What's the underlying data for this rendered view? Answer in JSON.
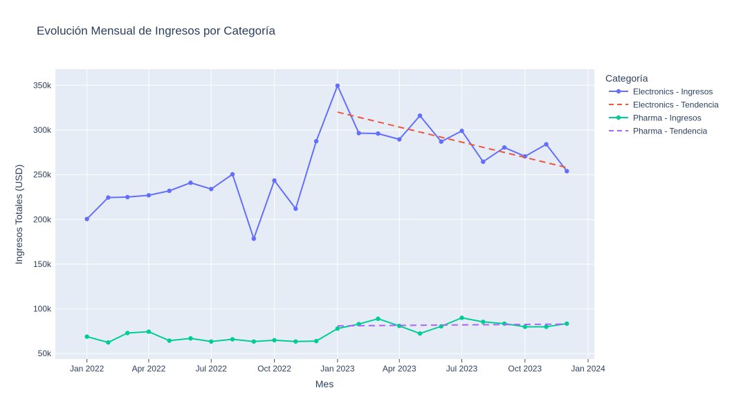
{
  "chart_data": {
    "type": "line",
    "title": "Evolución Mensual de Ingresos por Categoría",
    "xlabel": "Mes",
    "ylabel": "Ingresos Totales (USD)",
    "legend_title": "Categoría",
    "legend_position": "right",
    "grid": true,
    "x_tick_labels": [
      "Jan 2022",
      "Apr 2022",
      "Jul 2022",
      "Oct 2022",
      "Jan 2023",
      "Apr 2023",
      "Jul 2023",
      "Oct 2023",
      "Jan 2024"
    ],
    "y_ticks": [
      50000,
      100000,
      150000,
      200000,
      250000,
      300000,
      350000
    ],
    "y_tick_labels": [
      "50k",
      "100k",
      "150k",
      "200k",
      "250k",
      "300k",
      "350k"
    ],
    "ylim": [
      44000,
      368000
    ],
    "xlim": [
      "2021-11-16",
      "2024-01-10"
    ],
    "x": [
      "2022-01-01",
      "2022-02-01",
      "2022-03-01",
      "2022-04-01",
      "2022-05-01",
      "2022-06-01",
      "2022-07-01",
      "2022-08-01",
      "2022-09-01",
      "2022-10-01",
      "2022-11-01",
      "2022-12-01",
      "2023-01-01",
      "2023-02-01",
      "2023-03-01",
      "2023-04-01",
      "2023-05-01",
      "2023-06-01",
      "2023-07-01",
      "2023-08-01",
      "2023-09-01",
      "2023-10-01",
      "2023-11-01",
      "2023-12-01"
    ],
    "series": [
      {
        "name": "Electronics - Ingresos",
        "color": "#636efa",
        "mode": "lines+markers",
        "dash": "solid",
        "values": [
          200500,
          224500,
          225000,
          227000,
          232000,
          241000,
          234000,
          250500,
          178500,
          243500,
          212000,
          287500,
          349500,
          296500,
          296000,
          289500,
          316000,
          287000,
          299000,
          264500,
          280500,
          270500,
          284000,
          254000
        ]
      },
      {
        "name": "Electronics - Tendencia",
        "color": "#ef553b",
        "mode": "lines",
        "dash": "dash",
        "x": [
          "2023-01-01",
          "2023-12-01"
        ],
        "values": [
          320000,
          258000
        ]
      },
      {
        "name": "Pharma - Ingresos",
        "color": "#00cc96",
        "mode": "lines+markers",
        "dash": "solid",
        "values": [
          69000,
          62500,
          73000,
          74500,
          64500,
          67000,
          63500,
          66000,
          63500,
          65000,
          63500,
          64000,
          78000,
          83000,
          89000,
          81000,
          72500,
          80500,
          90000,
          85500,
          83500,
          80000,
          80000,
          83500
        ]
      },
      {
        "name": "Pharma - Tendencia",
        "color": "#ab63fa",
        "mode": "lines",
        "dash": "dash",
        "x": [
          "2023-01-01",
          "2023-12-01"
        ],
        "values": [
          81000,
          83000
        ]
      }
    ]
  }
}
